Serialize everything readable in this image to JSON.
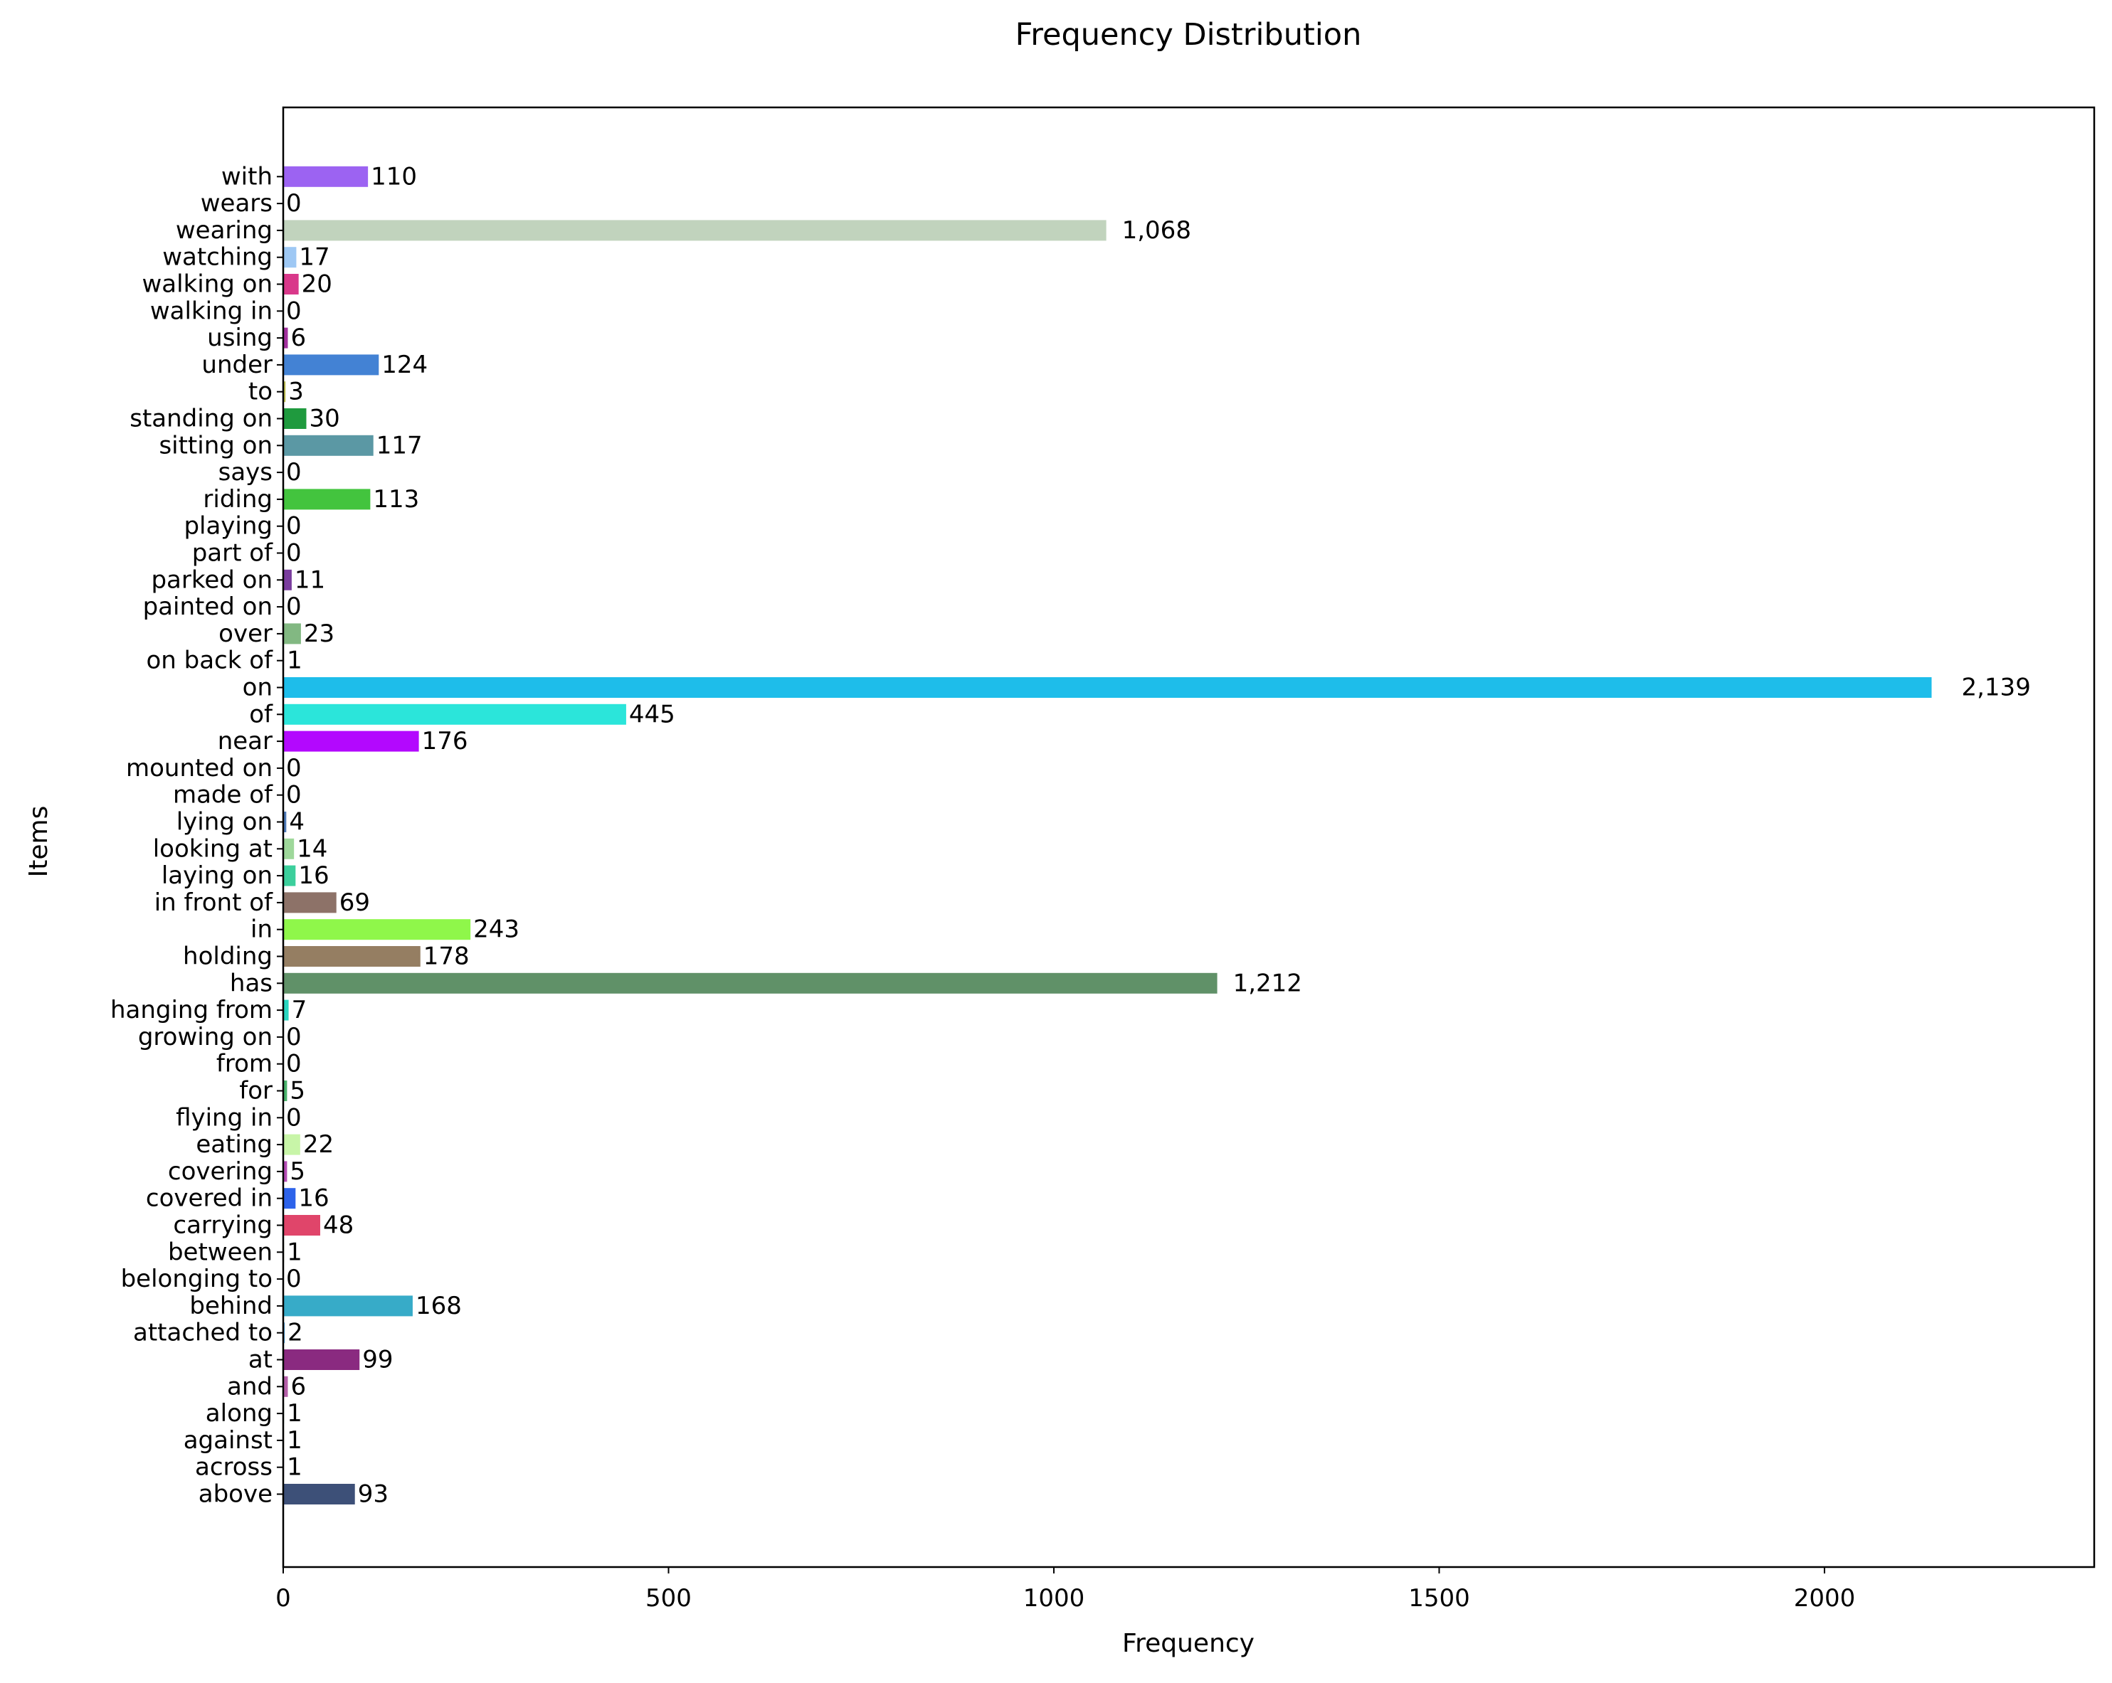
{
  "chart_data": {
    "type": "bar",
    "orientation": "horizontal",
    "title": "Frequency Distribution",
    "xlabel": "Frequency",
    "ylabel": "Items",
    "xlim": [
      0,
      2350
    ],
    "x_ticks": [
      0,
      500,
      1000,
      1500,
      2000
    ],
    "grid": false,
    "categories": [
      "above",
      "across",
      "against",
      "along",
      "and",
      "at",
      "attached to",
      "behind",
      "belonging to",
      "between",
      "carrying",
      "covered in",
      "covering",
      "eating",
      "flying in",
      "for",
      "from",
      "growing on",
      "hanging from",
      "has",
      "holding",
      "in",
      "in front of",
      "laying on",
      "looking at",
      "lying on",
      "made of",
      "mounted on",
      "near",
      "of",
      "on",
      "on back of",
      "over",
      "painted on",
      "parked on",
      "part of",
      "playing",
      "riding",
      "says",
      "sitting on",
      "standing on",
      "to",
      "under",
      "using",
      "walking in",
      "walking on",
      "watching",
      "wearing",
      "wears",
      "with"
    ],
    "values": [
      93,
      1,
      1,
      1,
      6,
      99,
      2,
      168,
      0,
      1,
      48,
      16,
      5,
      22,
      0,
      5,
      0,
      0,
      7,
      1212,
      178,
      243,
      69,
      16,
      14,
      4,
      0,
      0,
      176,
      445,
      2139,
      1,
      23,
      0,
      11,
      0,
      0,
      113,
      0,
      117,
      30,
      3,
      124,
      6,
      0,
      20,
      17,
      1068,
      0,
      110
    ],
    "value_labels": [
      "93",
      "1",
      "1",
      "1",
      "6",
      "99",
      "2",
      "168",
      "0",
      "1",
      "48",
      "16",
      "5",
      "22",
      "0",
      "5",
      "0",
      "0",
      "7",
      "1,212",
      "178",
      "243",
      "69",
      "16",
      "14",
      "4",
      "0",
      "0",
      "176",
      "445",
      "2,139",
      "1",
      "23",
      "0",
      "11",
      "0",
      "0",
      "113",
      "0",
      "117",
      "30",
      "3",
      "124",
      "6",
      "0",
      "20",
      "17",
      "1,068",
      "0",
      "110"
    ],
    "colors": [
      "#3d5078",
      "#8a4f9e",
      "#c46a2a",
      "#2f7d4f",
      "#b45fa8",
      "#8a2a80",
      "#4f9fd8",
      "#37abc8",
      "#d28a2c",
      "#8a7a2c",
      "#e0456a",
      "#2d63ea",
      "#b44cb4",
      "#c8f5a8",
      "#6c7a8c",
      "#4ab36c",
      "#a47b4a",
      "#6aa4c8",
      "#2ad6c0",
      "#609168",
      "#957e62",
      "#8ff74a",
      "#8d7268",
      "#3ccf9c",
      "#9ed89a",
      "#4d79b7",
      "#c0a070",
      "#a3a3d8",
      "#b308fe",
      "#2be5da",
      "#1ebdea",
      "#a05050",
      "#82b882",
      "#8a8a4a",
      "#7a3d9e",
      "#5a8ac8",
      "#c87a9a",
      "#43c43e",
      "#9a8a6a",
      "#5b98a4",
      "#1f9a3e",
      "#c0c050",
      "#4382d4",
      "#a2309e",
      "#7a9a9a",
      "#d9388a",
      "#9ec8f4",
      "#c1d3bd",
      "#8a6aa8",
      "#9c63f2"
    ]
  }
}
